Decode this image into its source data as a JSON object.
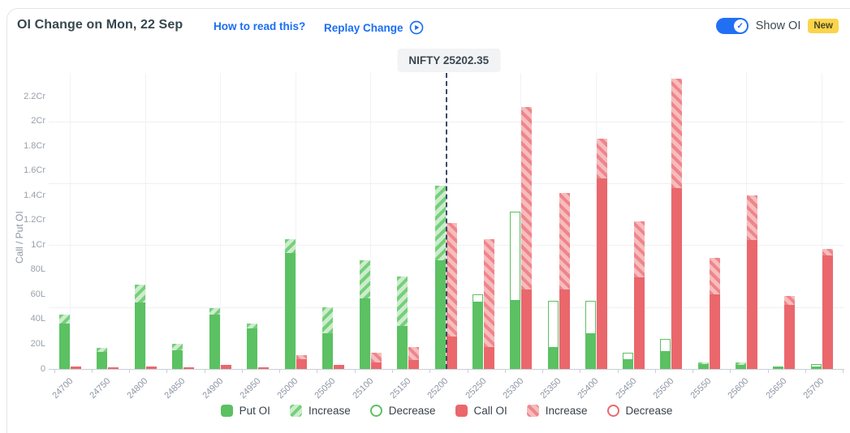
{
  "header": {
    "title": "OI Change on Mon, 22 Sep",
    "how_to_read_label": "How to read this?",
    "replay_label": "Replay Change",
    "show_oi_label": "Show OI",
    "new_badge": "New",
    "toggle_state": "on"
  },
  "nifty_marker": {
    "label": "NIFTY 25202.35",
    "value": 25202.35,
    "at_strike": 25200
  },
  "colors": {
    "put_green": "#5bc162",
    "put_light": "#cdeccd",
    "call_red": "#ea676c",
    "call_light": "#f6bcbe",
    "link_blue": "#1a6ef5",
    "toggle_blue": "#2170f3",
    "badge_yellow": "#fbd44c",
    "text_dark": "#37474f",
    "axis_text": "#98a0ab"
  },
  "chart_data": {
    "type": "bar",
    "title": "OI Change on Mon, 22 Sep",
    "xlabel": "",
    "ylabel": "Call / Put OI",
    "unit": "Lakh",
    "ylim": [
      0,
      240
    ],
    "grid": "horizontal every 50L, faint vertical at alternate strikes",
    "legend_position": "bottom-center",
    "y_tick_values": [
      0,
      20,
      40,
      60,
      80,
      100,
      120,
      140,
      160,
      180,
      200,
      220
    ],
    "y_tick_labels": [
      "0",
      "20L",
      "40L",
      "60L",
      "80L",
      "1Cr",
      "1.2Cr",
      "1.4Cr",
      "1.6Cr",
      "1.8Cr",
      "2Cr",
      "2.2Cr"
    ],
    "categories": [
      24700,
      24750,
      24800,
      24850,
      24900,
      24950,
      25000,
      25050,
      25100,
      25150,
      25200,
      25250,
      25300,
      25350,
      25400,
      25450,
      25500,
      25550,
      25600,
      25650,
      25700
    ],
    "series": [
      {
        "name": "Put OI",
        "role": "put_solid",
        "values": [
          37,
          14,
          54,
          15,
          44,
          33,
          94,
          29,
          57,
          35,
          88,
          54,
          55,
          17,
          28,
          7,
          14,
          4,
          3,
          2,
          1
        ]
      },
      {
        "name": "Put Increase",
        "role": "put_increase",
        "values": [
          7,
          3,
          14,
          5,
          5,
          4,
          11,
          21,
          31,
          40,
          60,
          0,
          0,
          0,
          0,
          0,
          0,
          1,
          2,
          0,
          0
        ]
      },
      {
        "name": "Put Decrease",
        "role": "put_decrease",
        "values": [
          0,
          0,
          0,
          0,
          0,
          0,
          0,
          0,
          0,
          0,
          0,
          6,
          72,
          38,
          27,
          6,
          10,
          0,
          0,
          0,
          3
        ]
      },
      {
        "name": "Call OI",
        "role": "call_solid",
        "values": [
          2,
          1,
          2,
          1,
          3,
          1.5,
          8,
          3,
          5,
          7,
          26,
          18,
          64,
          64,
          154,
          74,
          146,
          60,
          104,
          52,
          92
        ]
      },
      {
        "name": "Call Increase",
        "role": "call_increase",
        "values": [
          0,
          0,
          0,
          0,
          0,
          0,
          3,
          0,
          8,
          11,
          92,
          87,
          148,
          78,
          32,
          45,
          89,
          30,
          36,
          7,
          5
        ]
      },
      {
        "name": "Call Decrease",
        "role": "call_decrease",
        "values": [
          0,
          0,
          0,
          0,
          0,
          0,
          0,
          0,
          0,
          0,
          0,
          0,
          0,
          0,
          0,
          0,
          0,
          0,
          0,
          0,
          0
        ]
      }
    ]
  },
  "legend": {
    "items": [
      {
        "label": "Put OI",
        "style": "put-solid"
      },
      {
        "label": "Increase",
        "style": "put-inc"
      },
      {
        "label": "Decrease",
        "style": "put-dec ring"
      },
      {
        "label": "Call OI",
        "style": "call-solid"
      },
      {
        "label": "Increase",
        "style": "call-inc"
      },
      {
        "label": "Decrease",
        "style": "call-dec ring"
      }
    ]
  }
}
